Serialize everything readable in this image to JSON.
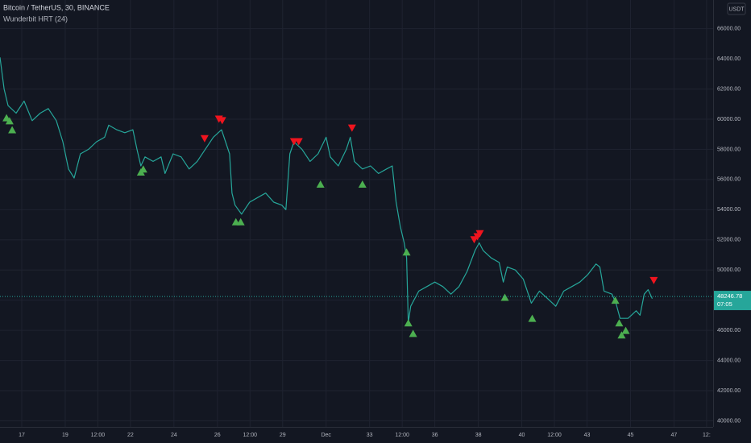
{
  "chart_data": {
    "type": "line",
    "title": "Bitcoin / TetherUS, 30, BINANCE",
    "subtitle": "Wunderbit HRT (24)",
    "currency": "USDT",
    "color": "#26a69a",
    "grid": true,
    "last_price": 48246.78,
    "countdown": "07:05",
    "x": [
      16.0,
      16.19,
      16.37,
      16.74,
      17.11,
      17.48,
      17.85,
      18.22,
      18.59,
      18.89,
      19.15,
      19.41,
      19.7,
      20.07,
      20.44,
      20.81,
      21.0,
      21.37,
      21.74,
      22.11,
      22.3,
      22.48,
      22.67,
      23.04,
      23.41,
      23.59,
      23.96,
      24.33,
      24.7,
      25.07,
      25.44,
      25.81,
      26.19,
      26.56,
      26.67,
      26.81,
      27.11,
      27.48,
      27.85,
      28.22,
      28.59,
      28.96,
      29.15,
      29.33,
      29.52,
      29.89,
      30.26,
      30.63,
      31.0,
      31.19,
      31.56,
      31.93,
      32.11,
      32.3,
      32.67,
      33.04,
      33.41,
      33.78,
      34.04,
      34.22,
      34.41,
      34.59,
      34.7,
      34.78,
      34.89,
      35.26,
      35.63,
      36.0,
      36.37,
      36.74,
      37.11,
      37.48,
      37.85,
      38.04,
      38.22,
      38.59,
      38.96,
      39.15,
      39.33,
      39.7,
      40.07,
      40.44,
      40.81,
      41.19,
      41.56,
      41.93,
      42.3,
      42.67,
      43.04,
      43.41,
      43.59,
      43.78,
      44.15,
      44.33,
      44.52,
      44.89,
      45.26,
      45.44,
      45.63,
      45.81,
      46.0
    ],
    "values": [
      64100,
      62000,
      60900,
      60400,
      61200,
      59900,
      60400,
      60700,
      59900,
      58500,
      56700,
      56100,
      57700,
      58000,
      58500,
      58800,
      59600,
      59300,
      59100,
      59300,
      58000,
      56900,
      57500,
      57200,
      57500,
      56400,
      57700,
      57500,
      56700,
      57200,
      58000,
      58800,
      59300,
      57700,
      55100,
      54300,
      53700,
      54500,
      54800,
      55100,
      54500,
      54300,
      54000,
      57700,
      58500,
      58000,
      57200,
      57700,
      58800,
      57500,
      56900,
      58000,
      58800,
      57200,
      56700,
      56900,
      56400,
      56700,
      56900,
      54500,
      52900,
      51800,
      50800,
      46500,
      47600,
      48600,
      48900,
      49200,
      48900,
      48400,
      48900,
      49900,
      51300,
      51800,
      51300,
      50800,
      50500,
      49200,
      50200,
      50000,
      49400,
      47800,
      48600,
      48100,
      47600,
      48600,
      48900,
      49200,
      49700,
      50400,
      50200,
      48600,
      48400,
      47800,
      46800,
      46800,
      47300,
      47000,
      48400,
      48700,
      48100
    ],
    "signals": {
      "buy": {
        "color": "#4caf50",
        "x": [
          16.3,
          16.44,
          16.56,
          22.48,
          22.59,
          26.85,
          27.07,
          30.74,
          32.67,
          34.7,
          34.78,
          35.0,
          39.22,
          40.48,
          44.3,
          44.48,
          44.59,
          44.78
        ],
        "values": [
          60100,
          59900,
          59300,
          56500,
          56700,
          53200,
          53200,
          55700,
          55700,
          51200,
          46500,
          45800,
          48200,
          46800,
          48000,
          46500,
          45700,
          46000
        ]
      },
      "sell": {
        "color": "#f0141e",
        "x": [
          25.41,
          26.07,
          26.22,
          29.52,
          29.74,
          32.19,
          37.81,
          37.96,
          38.07,
          46.07
        ],
        "values": [
          58700,
          60000,
          59900,
          58500,
          58500,
          59400,
          52000,
          52200,
          52400,
          49300
        ]
      }
    },
    "xlim": [
      16,
      48.8
    ],
    "xticks": [
      17,
      19,
      {
        "value": 20.5,
        "label": "12:00"
      },
      22,
      24,
      26,
      {
        "value": 27.5,
        "label": "12:00"
      },
      29,
      {
        "value": 31,
        "label": "Dec"
      },
      33,
      {
        "value": 34.5,
        "label": "12:00"
      },
      36,
      38,
      40,
      {
        "value": 41.5,
        "label": "12:00"
      },
      43,
      45,
      47,
      {
        "value": 48.5,
        "label": "12:"
      }
    ],
    "ylim": [
      39600,
      67900
    ],
    "yticks": [
      {
        "value": 40000,
        "label": "40000.00"
      },
      {
        "value": 42000,
        "label": "42000.00"
      },
      {
        "value": 44000,
        "label": "44000.00"
      },
      {
        "value": 46000,
        "label": "46000.00"
      },
      {
        "value": 48000,
        "label": "48000.00"
      },
      {
        "value": 50000,
        "label": "50000.00"
      },
      {
        "value": 52000,
        "label": "52000.00"
      },
      {
        "value": 54000,
        "label": "54000.00"
      },
      {
        "value": 56000,
        "label": "56000.00"
      },
      {
        "value": 58000,
        "label": "58000.00"
      },
      {
        "value": 60000,
        "label": "60000.00"
      },
      {
        "value": 62000,
        "label": "62000.00"
      },
      {
        "value": 64000,
        "label": "64000.00"
      },
      {
        "value": 66000,
        "label": "66000.00"
      }
    ]
  }
}
